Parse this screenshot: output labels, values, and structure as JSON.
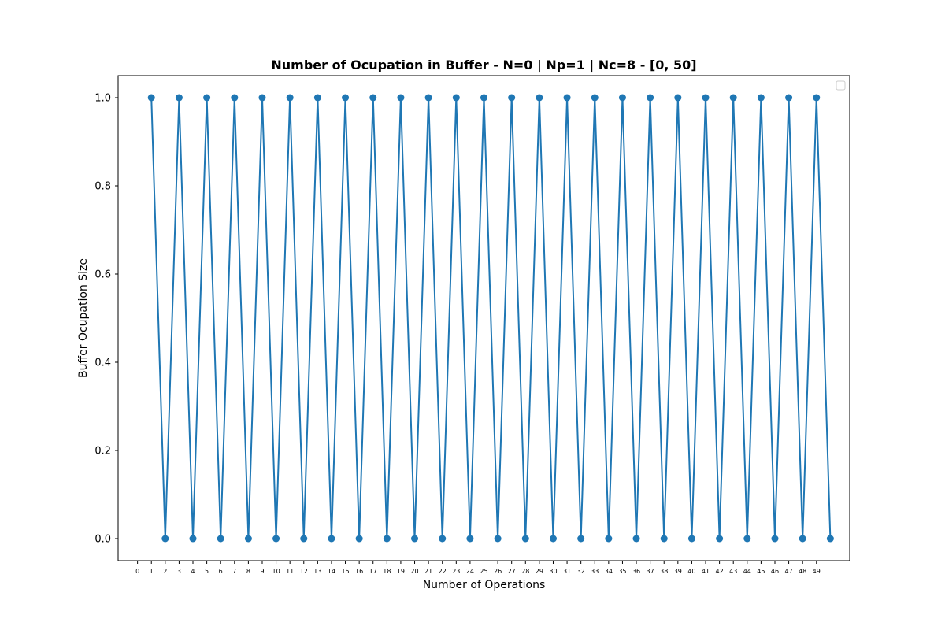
{
  "chart_data": {
    "type": "line",
    "title": "Number of Ocupation in Buffer - N=0 | Np=1 | Nc=8 - [0, 50]",
    "xlabel": "Number of Operations",
    "ylabel": "Buffer Ocupation Size",
    "xlim": [
      -1.4,
      51.4
    ],
    "ylim": [
      -0.05,
      1.05
    ],
    "xticks": [
      0,
      1,
      2,
      3,
      4,
      5,
      6,
      7,
      8,
      9,
      10,
      11,
      12,
      13,
      14,
      15,
      16,
      17,
      18,
      19,
      20,
      21,
      22,
      23,
      24,
      25,
      26,
      27,
      28,
      29,
      30,
      31,
      32,
      33,
      34,
      35,
      36,
      37,
      38,
      39,
      40,
      41,
      42,
      43,
      44,
      45,
      46,
      47,
      48,
      49
    ],
    "yticks": [
      0.0,
      0.2,
      0.4,
      0.6,
      0.8,
      1.0
    ],
    "ytick_labels": [
      "0.0",
      "0.2",
      "0.4",
      "0.6",
      "0.8",
      "1.0"
    ],
    "grid": false,
    "legend": "top-right",
    "color": "#1f77b4",
    "x": [
      1,
      2,
      3,
      4,
      5,
      6,
      7,
      8,
      9,
      10,
      11,
      12,
      13,
      14,
      15,
      16,
      17,
      18,
      19,
      20,
      21,
      22,
      23,
      24,
      25,
      26,
      27,
      28,
      29,
      30,
      31,
      32,
      33,
      34,
      35,
      36,
      37,
      38,
      39,
      40,
      41,
      42,
      43,
      44,
      45,
      46,
      47,
      48,
      49,
      50
    ],
    "values": [
      1,
      0,
      1,
      0,
      1,
      0,
      1,
      0,
      1,
      0,
      1,
      0,
      1,
      0,
      1,
      0,
      1,
      0,
      1,
      0,
      1,
      0,
      1,
      0,
      1,
      0,
      1,
      0,
      1,
      0,
      1,
      0,
      1,
      0,
      1,
      0,
      1,
      0,
      1,
      0,
      1,
      0,
      1,
      0,
      1,
      0,
      1,
      0,
      1,
      0
    ]
  }
}
